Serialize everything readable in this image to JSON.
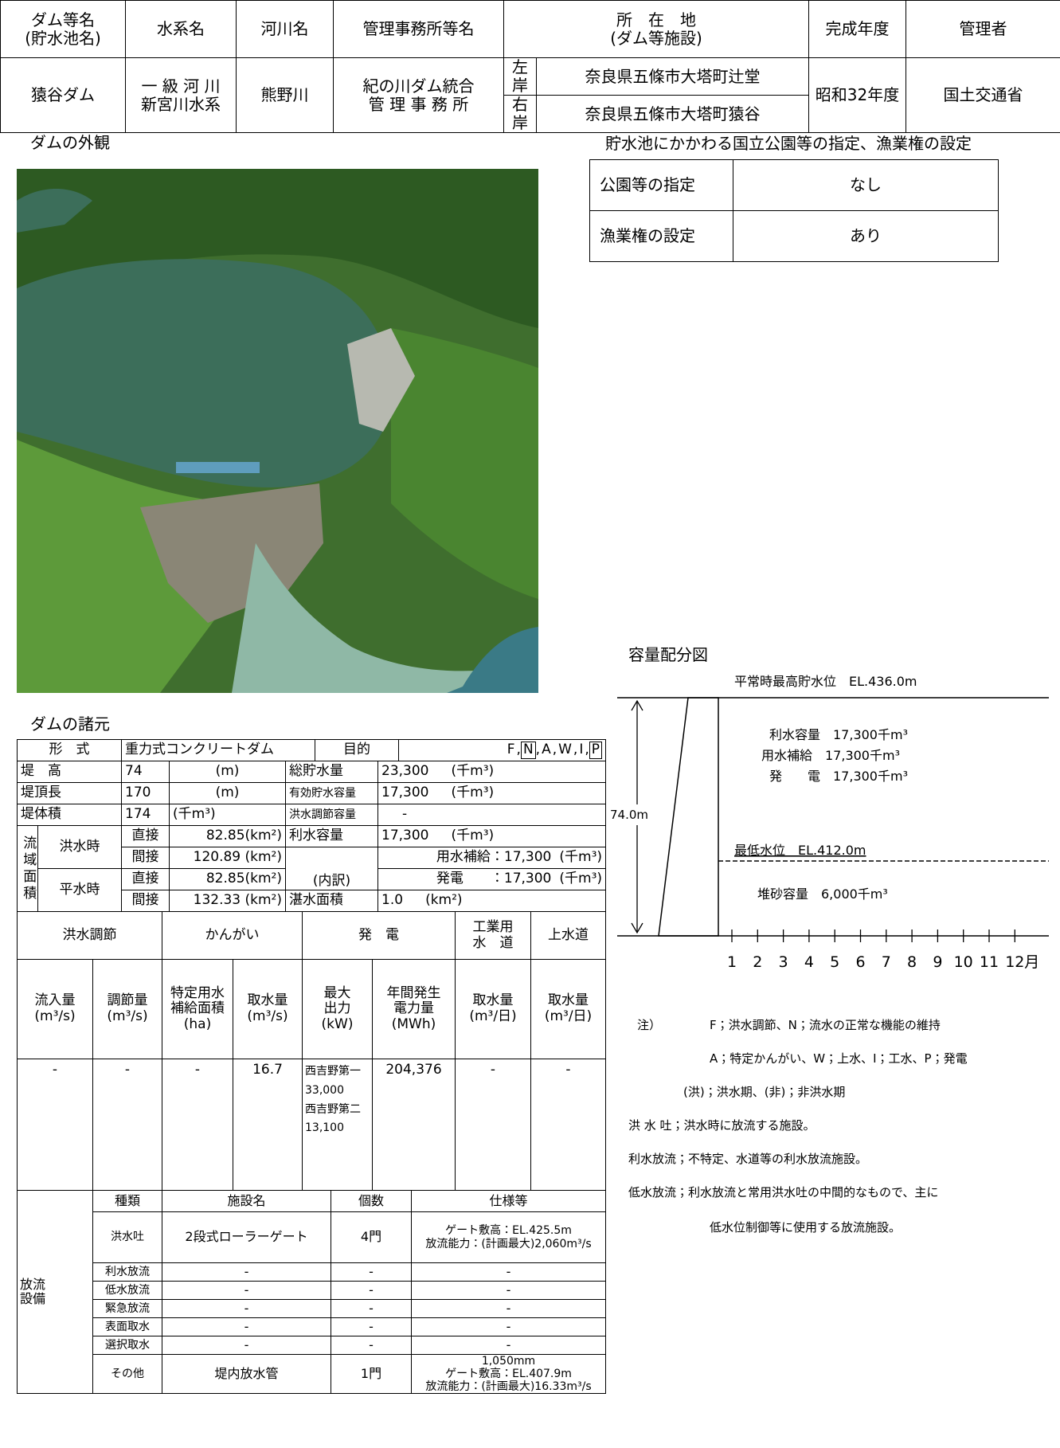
{
  "header": {
    "labels": [
      "ダム等名\n(貯水池名)",
      "水系名",
      "河川名",
      "管理事務所等名",
      "所　在　地\n(ダム等施設)",
      "完成年度",
      "管理者"
    ],
    "dam_name": "猿谷ダム",
    "river_system": "一 級 河 川\n新宮川水系",
    "river": "熊野川",
    "office": "紀の川ダム統合\n管 理 事 務 所",
    "left_bank": {
      "label": "左岸",
      "value": "奈良県五條市大塔町辻堂"
    },
    "right_bank": {
      "label": "右岸",
      "value": "奈良県五條市大塔町猿谷"
    },
    "completed": "昭和32年度",
    "manager": "国土交通省"
  },
  "photo": {
    "title": "ダムの外観"
  },
  "park": {
    "title": "貯水池にかかわる国立公園等の指定、漁業権の設定",
    "rows": [
      [
        "公園等の指定",
        "なし"
      ],
      [
        "漁業権の設定",
        "あり"
      ]
    ]
  },
  "specs": {
    "title": "ダムの諸元",
    "form": {
      "label": "形　式",
      "value": "重力式コンクリートダム"
    },
    "purpose": {
      "label": "目的",
      "separator": ",",
      "codes": [
        {
          "code": "F"
        },
        {
          "code": "N",
          "boxed": true
        },
        {
          "code": "A"
        },
        {
          "code": "W"
        },
        {
          "code": "I"
        },
        {
          "code": "P",
          "boxed": true
        }
      ]
    },
    "height": {
      "label": "堤　高",
      "value": "74",
      "unit": "(m)"
    },
    "crest_length": {
      "label": "堤頂長",
      "value": "170",
      "unit": "(m)"
    },
    "volume": {
      "label": "堤体積",
      "value": "174",
      "unit": "(千m³)"
    },
    "total_storage": {
      "label": "総貯水量",
      "value": "23,300",
      "unit": "(千m³)"
    },
    "effective_storage": {
      "label": "有効貯水容量",
      "value": "17,300",
      "unit": "(千m³)"
    },
    "flood_capacity": {
      "label": "洪水調節容量",
      "value": "-"
    },
    "water_use_capacity": {
      "label": "利水容量",
      "value": "17,300",
      "unit": "(千m³)"
    },
    "breakdown": {
      "label": "(内訳)",
      "items": [
        {
          "name": "用水補給",
          "value": "：17,300",
          "unit": "(千m³)"
        },
        {
          "name": "発電",
          "value": "：17,300",
          "unit": "(千m³)"
        }
      ]
    },
    "reservoir_area": {
      "label": "湛水面積",
      "value": "1.0",
      "unit": "(km²)"
    },
    "catchment": {
      "label": "流域面積",
      "flood": {
        "label": "洪水時",
        "direct": {
          "label": "直接",
          "value": "82.85(km²)"
        },
        "indirect": {
          "label": "間接",
          "value": "120.89 (km²)"
        }
      },
      "normal": {
        "label": "平水時",
        "direct": {
          "label": "直接",
          "value": "82.85(km²)"
        },
        "indirect": {
          "label": "間接",
          "value": "132.33 (km²)"
        }
      }
    }
  },
  "purposes": {
    "groups": [
      "洪水調節",
      "かんがい",
      "発　電",
      "工業用\n水　道",
      "上水道"
    ],
    "columns": [
      "流入量\n(m³/s)",
      "調節量\n(m³/s)",
      "特定用水\n補給面積\n(ha)",
      "取水量\n(m³/s)",
      "最大\n出力\n(kW)",
      "年間発生\n電力量\n(MWh)",
      "取水量\n(m³/日)",
      "取水量\n(m³/日)"
    ],
    "values": [
      "-",
      "-",
      "-",
      "16.7",
      "西吉野第一\n33,000\n西吉野第二\n13,100",
      "204,376",
      "-",
      "-"
    ]
  },
  "release": {
    "label": "放流\n設備",
    "headers": [
      "種類",
      "施設名",
      "個数",
      "仕様等"
    ],
    "rows": [
      [
        "洪水吐",
        "2段式ローラーゲート",
        "4門",
        "ゲート敷高：EL.425.5m\n放流能力：(計画最大)2,060m³/s"
      ],
      [
        "利水放流",
        "-",
        "-",
        "-"
      ],
      [
        "低水放流",
        "-",
        "-",
        "-"
      ],
      [
        "緊急放流",
        "-",
        "-",
        "-"
      ],
      [
        "表面取水",
        "-",
        "-",
        "-"
      ],
      [
        "選択取水",
        "-",
        "-",
        "-"
      ],
      [
        "その他",
        "堤内放水管",
        "1門",
        "1,050mm\nゲート敷高：EL.407.9m\n放流能力：(計画最大)16.33m³/s"
      ]
    ]
  },
  "capacity_diagram": {
    "title": "容量配分図",
    "high_water": "平常時最高貯水位　EL.436.0m",
    "water_use": [
      "利水容量　17,300千m³",
      "用水補給　17,300千m³",
      "発　　電　17,300千m³"
    ],
    "height": "74.0m",
    "low_water": "最低水位　EL.412.0m",
    "sediment": "堆砂容量　6,000千m³",
    "months": [
      "1",
      "2",
      "3",
      "4",
      "5",
      "6",
      "7",
      "8",
      "9",
      "10",
      "11",
      "12"
    ],
    "month_unit": "月"
  },
  "notes": {
    "label": "注）",
    "legend": [
      "F；洪水調節、N；流水の正常な機能の維持",
      "A；特定かんがい、W；上水、I；工水、P；発電",
      "(洪)；洪水期、(非)；非洪水期"
    ],
    "definitions": [
      "洪 水 吐；洪水時に放流する施設。",
      "利水放流；不特定、水道等の利水放流施設。",
      "低水放流；利水放流と常用洪水吐の中間的なもので、主に",
      "低水位制御等に使用する放流施設。"
    ]
  }
}
